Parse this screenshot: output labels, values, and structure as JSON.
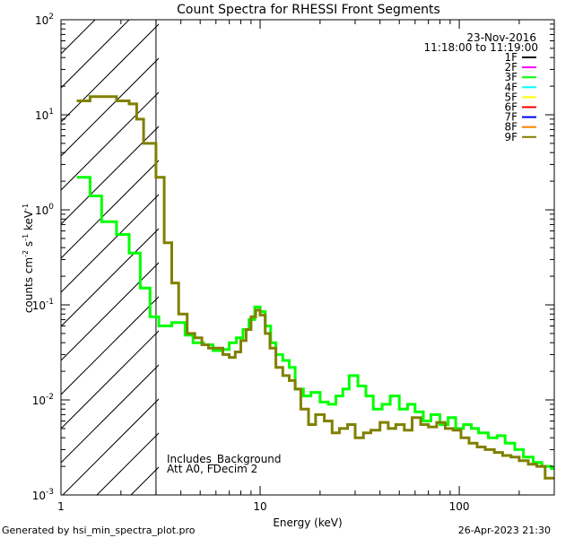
{
  "chart_data": {
    "type": "line",
    "title": "Count Spectra for RHESSI Front Segments",
    "xlabel": "Energy (keV)",
    "ylabel_main": "counts cm",
    "ylabel_sup1": "-2",
    "ylabel_mid": " s",
    "ylabel_sup2": "-1",
    "ylabel_mid2": " keV",
    "ylabel_sup3": "-1",
    "xscale": "log",
    "yscale": "log",
    "xlim": [
      1,
      300
    ],
    "ylim": [
      0.001,
      100
    ],
    "x_ticks": [
      {
        "value": 1,
        "label": "1"
      },
      {
        "value": 10,
        "label": "10"
      },
      {
        "value": 100,
        "label": "100"
      }
    ],
    "y_ticks": [
      {
        "value": 0.001,
        "base": "10",
        "exp": "-3"
      },
      {
        "value": 0.01,
        "base": "10",
        "exp": "-2"
      },
      {
        "value": 0.1,
        "base": "10",
        "exp": "-1"
      },
      {
        "value": 1,
        "base": "10",
        "exp": "0"
      },
      {
        "value": 10,
        "base": "10",
        "exp": "1"
      },
      {
        "value": 100,
        "base": "10",
        "exp": "2"
      }
    ],
    "shaded_region": {
      "from": 1,
      "to": 3
    },
    "date": "23-Nov-2016",
    "time_range": "11:18:00 to 11:19:00",
    "legend": [
      {
        "label": "1F",
        "color": "#000000"
      },
      {
        "label": "2F",
        "color": "#ff00ff"
      },
      {
        "label": "3F",
        "color": "#00ff00"
      },
      {
        "label": "4F",
        "color": "#00ffff"
      },
      {
        "label": "5F",
        "color": "#ffff00"
      },
      {
        "label": "6F",
        "color": "#ff0000"
      },
      {
        "label": "7F",
        "color": "#0000ff"
      },
      {
        "label": "8F",
        "color": "#ff8000"
      },
      {
        "label": "9F",
        "color": "#808000"
      }
    ],
    "annotations": [
      "Includes_Background",
      "Att A0, FDecim 2"
    ],
    "series": [
      {
        "name": "3F",
        "color": "#00ff00",
        "stroke_width": 3,
        "steps": [
          [
            1.2,
            1.4,
            2.2
          ],
          [
            1.4,
            1.6,
            1.4
          ],
          [
            1.6,
            1.9,
            0.75
          ],
          [
            1.9,
            2.2,
            0.55
          ],
          [
            2.2,
            2.5,
            0.35
          ],
          [
            2.5,
            2.8,
            0.15
          ],
          [
            2.8,
            3.1,
            0.075
          ],
          [
            3.1,
            3.6,
            0.06
          ],
          [
            3.6,
            4.2,
            0.065
          ],
          [
            4.2,
            4.6,
            0.048
          ],
          [
            4.6,
            5.2,
            0.04
          ],
          [
            5.2,
            5.8,
            0.038
          ],
          [
            5.8,
            6.4,
            0.033
          ],
          [
            6.4,
            7.0,
            0.034
          ],
          [
            7.0,
            7.6,
            0.04
          ],
          [
            7.6,
            8.2,
            0.045
          ],
          [
            8.2,
            8.8,
            0.055
          ],
          [
            8.8,
            9.4,
            0.07
          ],
          [
            9.4,
            10.0,
            0.095
          ],
          [
            10.0,
            10.6,
            0.085
          ],
          [
            10.6,
            11.3,
            0.06
          ],
          [
            11.3,
            12.0,
            0.04
          ],
          [
            12.0,
            13.0,
            0.03
          ],
          [
            13.0,
            14.0,
            0.026
          ],
          [
            14.0,
            15.0,
            0.022
          ],
          [
            15.0,
            16.5,
            0.013
          ],
          [
            16.5,
            18.0,
            0.011
          ],
          [
            18.0,
            20.0,
            0.012
          ],
          [
            20.0,
            22.0,
            0.0095
          ],
          [
            22.0,
            24.0,
            0.009
          ],
          [
            24.0,
            26.0,
            0.011
          ],
          [
            26.0,
            28.0,
            0.013
          ],
          [
            28.0,
            31.0,
            0.018
          ],
          [
            31.0,
            34.0,
            0.014
          ],
          [
            34.0,
            37.0,
            0.011
          ],
          [
            37.0,
            41.0,
            0.008
          ],
          [
            41.0,
            45.0,
            0.009
          ],
          [
            45.0,
            50.0,
            0.011
          ],
          [
            50.0,
            55.0,
            0.008
          ],
          [
            55.0,
            60.0,
            0.009
          ],
          [
            60.0,
            66.0,
            0.0075
          ],
          [
            66.0,
            72.0,
            0.006
          ],
          [
            72.0,
            80.0,
            0.007
          ],
          [
            80.0,
            88.0,
            0.0055
          ],
          [
            88.0,
            96.0,
            0.0065
          ],
          [
            96.0,
            105.0,
            0.005
          ],
          [
            105.0,
            115.0,
            0.0055
          ],
          [
            115.0,
            125.0,
            0.005
          ],
          [
            125.0,
            140.0,
            0.0045
          ],
          [
            140.0,
            155.0,
            0.004
          ],
          [
            155.0,
            170.0,
            0.0042
          ],
          [
            170.0,
            190.0,
            0.0035
          ],
          [
            190.0,
            210.0,
            0.003
          ],
          [
            210.0,
            235.0,
            0.0025
          ],
          [
            235.0,
            260.0,
            0.0022
          ],
          [
            260.0,
            290.0,
            0.002
          ],
          [
            290.0,
            300.0,
            0.0019
          ]
        ]
      },
      {
        "name": "9F",
        "color": "#808000",
        "stroke_width": 3,
        "steps": [
          [
            1.2,
            1.4,
            14
          ],
          [
            1.4,
            1.6,
            15.5
          ],
          [
            1.6,
            1.9,
            15.5
          ],
          [
            1.9,
            2.2,
            14
          ],
          [
            2.2,
            2.4,
            13
          ],
          [
            2.4,
            2.6,
            9
          ],
          [
            2.6,
            2.8,
            5
          ],
          [
            2.8,
            3.0,
            5
          ],
          [
            3.0,
            3.3,
            2.2
          ],
          [
            3.3,
            3.6,
            0.45
          ],
          [
            3.6,
            3.9,
            0.17
          ],
          [
            3.9,
            4.3,
            0.08
          ],
          [
            4.3,
            4.7,
            0.05
          ],
          [
            4.7,
            5.1,
            0.045
          ],
          [
            5.1,
            5.5,
            0.038
          ],
          [
            5.5,
            6.0,
            0.035
          ],
          [
            6.0,
            6.5,
            0.035
          ],
          [
            6.5,
            7.0,
            0.03
          ],
          [
            7.0,
            7.5,
            0.028
          ],
          [
            7.5,
            8.0,
            0.032
          ],
          [
            8.0,
            8.5,
            0.042
          ],
          [
            8.5,
            9.0,
            0.055
          ],
          [
            9.0,
            9.5,
            0.075
          ],
          [
            9.5,
            10.0,
            0.088
          ],
          [
            10.0,
            10.6,
            0.078
          ],
          [
            10.6,
            11.2,
            0.05
          ],
          [
            11.2,
            12.0,
            0.035
          ],
          [
            12.0,
            13.0,
            0.022
          ],
          [
            13.0,
            14.0,
            0.018
          ],
          [
            14.0,
            15.0,
            0.016
          ],
          [
            15.0,
            16.0,
            0.013
          ],
          [
            16.0,
            17.5,
            0.008
          ],
          [
            17.5,
            19.0,
            0.0055
          ],
          [
            19.0,
            21.0,
            0.007
          ],
          [
            21.0,
            23.0,
            0.006
          ],
          [
            23.0,
            25.0,
            0.0045
          ],
          [
            25.0,
            27.5,
            0.005
          ],
          [
            27.5,
            30.0,
            0.0055
          ],
          [
            30.0,
            33.0,
            0.004
          ],
          [
            33.0,
            36.0,
            0.0045
          ],
          [
            36.0,
            40.0,
            0.0048
          ],
          [
            40.0,
            44.0,
            0.0058
          ],
          [
            44.0,
            48.0,
            0.005
          ],
          [
            48.0,
            53.0,
            0.0055
          ],
          [
            53.0,
            58.0,
            0.0048
          ],
          [
            58.0,
            64.0,
            0.0065
          ],
          [
            64.0,
            70.0,
            0.0055
          ],
          [
            70.0,
            77.0,
            0.0052
          ],
          [
            77.0,
            85.0,
            0.0058
          ],
          [
            85.0,
            93.0,
            0.005
          ],
          [
            93.0,
            102.0,
            0.0048
          ],
          [
            102.0,
            112.0,
            0.004
          ],
          [
            112.0,
            123.0,
            0.0035
          ],
          [
            123.0,
            135.0,
            0.0032
          ],
          [
            135.0,
            150.0,
            0.003
          ],
          [
            150.0,
            165.0,
            0.0028
          ],
          [
            165.0,
            182.0,
            0.0026
          ],
          [
            182.0,
            200.0,
            0.0025
          ],
          [
            200.0,
            222.0,
            0.0023
          ],
          [
            222.0,
            245.0,
            0.0021
          ],
          [
            245.0,
            270.0,
            0.002
          ],
          [
            270.0,
            300.0,
            0.0015
          ]
        ]
      }
    ]
  },
  "footer": {
    "generated_by": "Generated by hsi_min_spectra_plot.pro",
    "timestamp": "26-Apr-2023 21:30"
  }
}
